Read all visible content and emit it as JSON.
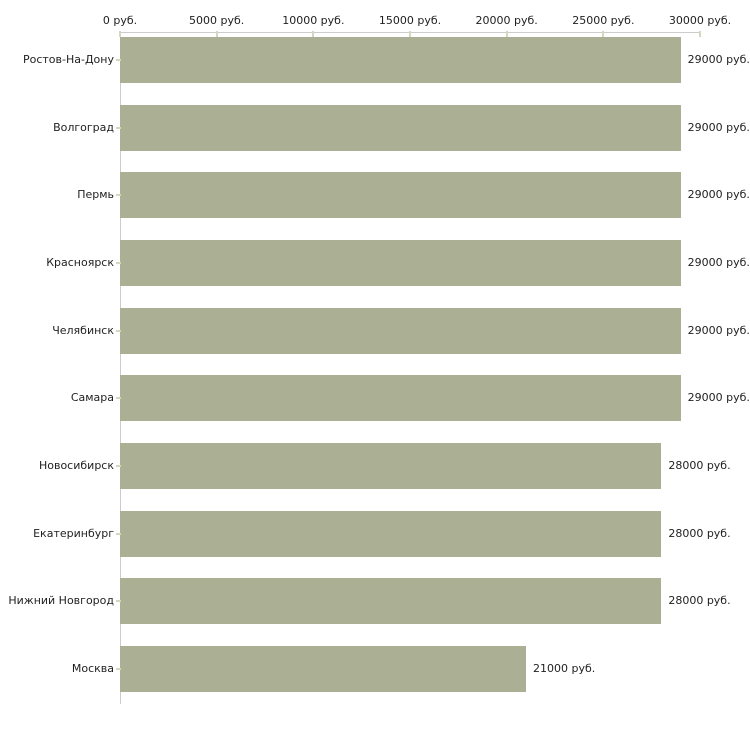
{
  "chart_data": {
    "type": "bar",
    "orientation": "horizontal",
    "title": "",
    "xlabel": "",
    "ylabel": "",
    "xlim": [
      0,
      30000
    ],
    "grid": false,
    "legend": null,
    "categories": [
      "Ростов-На-Дону",
      "Волгоград",
      "Пермь",
      "Красноярск",
      "Челябинск",
      "Самара",
      "Новосибирск",
      "Екатеринбург",
      "Нижний Новгород",
      "Москва"
    ],
    "values": [
      29000,
      29000,
      29000,
      29000,
      29000,
      29000,
      28000,
      28000,
      28000,
      21000
    ],
    "value_labels": [
      "29000 руб.",
      "29000 руб.",
      "29000 руб.",
      "29000 руб.",
      "29000 руб.",
      "29000 руб.",
      "28000 руб.",
      "28000 руб.",
      "28000 руб.",
      "21000 руб."
    ],
    "x_ticks": [
      0,
      5000,
      10000,
      15000,
      20000,
      25000,
      30000
    ],
    "x_tick_labels": [
      "0 руб.",
      "5000 руб.",
      "10000 руб.",
      "15000 руб.",
      "20000 руб.",
      "25000 руб.",
      "30000 руб."
    ],
    "colors": {
      "bar": "#abb094",
      "axis_line": "#cccccc",
      "tick_mark": "#d5d8bd",
      "text": "#1f1f1f",
      "background": "#ffffff"
    }
  }
}
